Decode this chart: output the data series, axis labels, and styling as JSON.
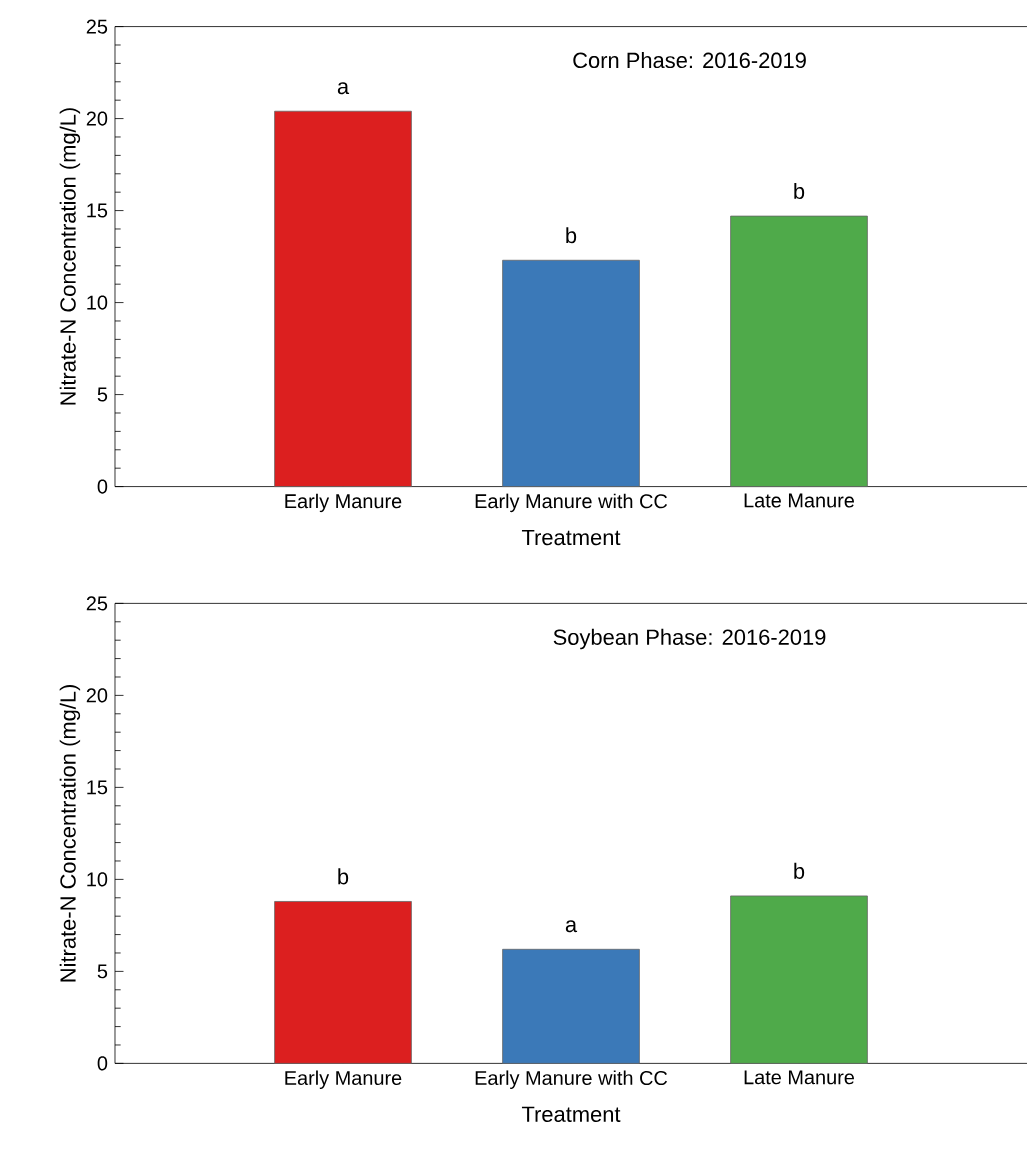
{
  "chart_data": [
    {
      "type": "bar",
      "title": "Corn Phase: 2016-2019",
      "xlabel": "Treatment",
      "ylabel": "Nitrate-N Concentration (mg/L)",
      "categories": [
        "Early Manure",
        "Early Manure with CC",
        "Late Manure"
      ],
      "values": [
        20.4,
        12.3,
        14.7
      ],
      "colors": [
        "#dc1f1f",
        "#3b79b8",
        "#4faa4a"
      ],
      "ylim": [
        0,
        25
      ],
      "yticks": [
        0,
        5,
        10,
        15,
        20,
        25
      ],
      "grid": false,
      "annotations": [
        {
          "text": "a",
          "x": "Early Manure",
          "y": 20.4
        },
        {
          "text": "b",
          "x": "Early Manure with CC",
          "y": 12.3
        },
        {
          "text": "b",
          "x": "Late Manure",
          "y": 14.7
        }
      ]
    },
    {
      "type": "bar",
      "title": "Soybean Phase: 2016-2019",
      "xlabel": "Treatment",
      "ylabel": "Nitrate-N Concentration (mg/L)",
      "categories": [
        "Early Manure",
        "Early Manure with CC",
        "Late Manure"
      ],
      "values": [
        8.8,
        6.2,
        9.1
      ],
      "colors": [
        "#dc1f1f",
        "#3b79b8",
        "#4faa4a"
      ],
      "ylim": [
        0,
        25
      ],
      "yticks": [
        0,
        5,
        10,
        15,
        20,
        25
      ],
      "grid": false,
      "annotations": [
        {
          "text": "b",
          "x": "Early Manure",
          "y": 8.8
        },
        {
          "text": "a",
          "x": "Early Manure with CC",
          "y": 6.2
        },
        {
          "text": "b",
          "x": "Late Manure",
          "y": 9.1
        }
      ]
    }
  ]
}
